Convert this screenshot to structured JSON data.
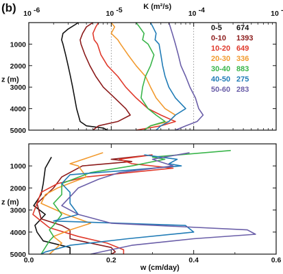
{
  "panel_label": "(b)",
  "chart_data": [
    {
      "type": "line",
      "xlabel": "K (m²/s)",
      "ylabel": "z (m)",
      "xscale": "log",
      "xlim": [
        1e-06,
        0.001
      ],
      "ylim": [
        5000,
        0
      ],
      "x_tick_labels": [
        {
          "exp": "-6"
        },
        {
          "exp": "-5"
        },
        {
          "exp": "-4"
        },
        {
          "exp": "-3"
        }
      ],
      "x_tick_values": [
        1e-06,
        1e-05,
        0.0001,
        0.001
      ],
      "y_ticks": [
        1000,
        2000,
        3000,
        4000,
        5000
      ],
      "reference_lines_x": [
        1e-05,
        0.0001
      ],
      "legend_position": "top-right",
      "series": [
        {
          "name": "0-5",
          "count": "674",
          "color": "#111111",
          "z": [
            0,
            300,
            500,
            800,
            1000,
            1500,
            2000,
            2500,
            3000,
            3500,
            4000,
            4300,
            4600,
            4800,
            4900,
            5000
          ],
          "x": [
            4e-06,
            3e-06,
            2.6e-06,
            2.5e-06,
            2.6e-06,
            2.8e-06,
            3e-06,
            3.2e-06,
            3.4e-06,
            3.6e-06,
            3.8e-06,
            4e-06,
            4.2e-06,
            5e-06,
            8e-06,
            9e-06
          ]
        },
        {
          "name": "0-10",
          "count": "1393",
          "color": "#8b1a1a",
          "z": [
            0,
            200,
            500,
            800,
            1000,
            1500,
            2000,
            2500,
            3000,
            3500,
            4000,
            4300,
            4600,
            4800,
            5000
          ],
          "x": [
            6e-06,
            5e-06,
            4.5e-06,
            4.2e-06,
            4.3e-06,
            4.8e-06,
            5.5e-06,
            6.5e-06,
            8e-06,
            1.1e-05,
            1.5e-05,
            1.7e-05,
            1.2e-05,
            7e-06,
            6e-06
          ]
        },
        {
          "name": "10-20",
          "count": "649",
          "color": "#e0392b",
          "z": [
            0,
            200,
            500,
            800,
            1000,
            1500,
            2000,
            2500,
            3000,
            3500,
            4000,
            4300,
            4600,
            4800,
            5000
          ],
          "x": [
            7e-06,
            6.5e-06,
            6e-06,
            6.2e-06,
            6.8e-06,
            7.5e-06,
            9e-06,
            1.2e-05,
            1.5e-05,
            2e-05,
            2.8e-05,
            4e-05,
            6e-05,
            4e-05,
            2e-05
          ]
        },
        {
          "name": "20-30",
          "count": "336",
          "color": "#f29a2e",
          "z": [
            0,
            200,
            500,
            800,
            1000,
            1500,
            2000,
            2500,
            3000,
            3500,
            4000,
            4300,
            4600,
            4800,
            5000
          ],
          "x": [
            1e-05,
            1.1e-05,
            1e-05,
            1.2e-05,
            1.3e-05,
            1.6e-05,
            2e-05,
            2.6e-05,
            3e-05,
            3.5e-05,
            4.5e-05,
            6e-05,
            5e-05,
            3e-05,
            2.5e-05
          ]
        },
        {
          "name": "30-40",
          "count": "883",
          "color": "#39b54a",
          "z": [
            0,
            200,
            500,
            800,
            1000,
            1500,
            2000,
            2500,
            3000,
            3500,
            4000,
            4300,
            4600,
            4800,
            5000
          ],
          "x": [
            2e-05,
            2.2e-05,
            2.5e-05,
            2.4e-05,
            2.8e-05,
            3.3e-05,
            3e-05,
            2.6e-05,
            2.4e-05,
            2.3e-05,
            2.8e-05,
            3.5e-05,
            4.5e-05,
            3e-05,
            2.5e-05
          ]
        },
        {
          "name": "40-50",
          "count": "275",
          "color": "#1f7bb6",
          "z": [
            0,
            200,
            500,
            800,
            1000,
            1500,
            2000,
            2500,
            3000,
            3500,
            4000,
            4300,
            4600,
            4800,
            5000
          ],
          "x": [
            3e-05,
            3.2e-05,
            3.5e-05,
            3.4e-05,
            3.8e-05,
            4e-05,
            4.2e-05,
            4.5e-05,
            5e-05,
            6e-05,
            8e-05,
            6e-05,
            5e-05,
            4e-05,
            3.5e-05
          ]
        },
        {
          "name": "50-60",
          "count": "283",
          "color": "#6a5ea8",
          "z": [
            0,
            200,
            500,
            800,
            1000,
            1500,
            2000,
            2500,
            3000,
            3500,
            4000,
            4300,
            4600,
            4800,
            5000
          ],
          "x": [
            5e-05,
            5.2e-05,
            5.5e-05,
            5.8e-05,
            6e-05,
            6.5e-05,
            7e-05,
            8e-05,
            9e-05,
            0.000105,
            0.000115,
            0.00013,
            0.00011,
            8e-05,
            6e-05
          ]
        }
      ]
    },
    {
      "type": "line",
      "xlabel": "w (cm/day)",
      "ylabel": "z (m)",
      "xlim": [
        0,
        0.6
      ],
      "ylim": [
        5000,
        0
      ],
      "x_ticks": [
        0.0,
        0.2,
        0.4,
        0.6
      ],
      "x_tick_labels": [
        "0.0",
        "0.2",
        "0.4",
        "0.6"
      ],
      "y_ticks": [
        1000,
        2000,
        3000,
        4000,
        5000
      ],
      "series": [
        {
          "name": "0-5",
          "color": "#111111",
          "z": [
            600,
            1100,
            1800,
            2300,
            2800,
            3200,
            3700,
            4000,
            4400,
            4700,
            5000
          ],
          "x": [
            0.055,
            0.04,
            0.035,
            0.03,
            0.012,
            0.04,
            0.015,
            0.02,
            0.035,
            0.1,
            0.1
          ]
        },
        {
          "name": "0-10",
          "color": "#8b1a1a",
          "z": [
            500,
            700,
            800,
            1000,
            1500,
            2000,
            2700,
            3400,
            3700,
            3900,
            4300,
            4700,
            4900,
            5000
          ],
          "x": [
            0.3,
            0.2,
            0.25,
            0.13,
            0.08,
            0.06,
            0.02,
            0.03,
            0.08,
            0.1,
            0.1,
            0.2,
            0.21,
            0.2
          ]
        },
        {
          "name": "10-20",
          "color": "#e0392b",
          "z": [
            500,
            700,
            900,
            1100,
            1500,
            1800,
            2200,
            2700,
            3200,
            3500,
            3800,
            4200,
            4500,
            4800,
            5000
          ],
          "x": [
            0.3,
            0.22,
            0.25,
            0.35,
            0.14,
            0.07,
            0.03,
            0.02,
            0.01,
            0.03,
            0.05,
            0.12,
            0.19,
            0.23,
            0.23
          ]
        },
        {
          "name": "20-30",
          "color": "#f29a2e",
          "z": [
            400,
            900,
            1000,
            1500,
            2000,
            2300,
            2700,
            3200,
            3600,
            3900,
            4200,
            4500,
            5000
          ],
          "x": [
            0.18,
            0.1,
            0.12,
            0.14,
            0.07,
            0.04,
            0.03,
            0.09,
            0.15,
            0.1,
            0.06,
            0.08,
            0.05
          ]
        },
        {
          "name": "30-40",
          "color": "#39b54a",
          "z": [
            300,
            600,
            700,
            1000,
            1300,
            1800,
            2300,
            2700,
            3200,
            3700,
            3900,
            4200,
            4400,
            4700,
            5000
          ],
          "x": [
            0.49,
            0.3,
            0.33,
            0.25,
            0.15,
            0.08,
            0.08,
            0.06,
            0.08,
            0.06,
            0.05,
            0.06,
            0.05,
            0.04,
            0.03
          ]
        },
        {
          "name": "40-50",
          "color": "#1f7bb6",
          "z": [
            500,
            700,
            900,
            1000,
            1200,
            1400,
            1800,
            2200,
            2700,
            3200,
            3500,
            3700,
            4000,
            4300,
            4600,
            4900,
            5000
          ],
          "x": [
            0.28,
            0.36,
            0.34,
            0.37,
            0.24,
            0.1,
            0.08,
            0.1,
            0.1,
            0.12,
            0.06,
            0.38,
            0.4,
            0.24,
            0.1,
            0.04,
            0.03
          ]
        },
        {
          "name": "50-60",
          "color": "#6a5ea8",
          "z": [
            400,
            700,
            1000,
            1300,
            1600,
            2000,
            2400,
            2800,
            3200,
            3600,
            3900,
            4100,
            4300,
            4600,
            5000
          ],
          "x": [
            0.39,
            0.3,
            0.35,
            0.22,
            0.17,
            0.12,
            0.1,
            0.08,
            0.12,
            0.2,
            0.53,
            0.55,
            0.4,
            0.25,
            0.15
          ]
        }
      ]
    }
  ]
}
